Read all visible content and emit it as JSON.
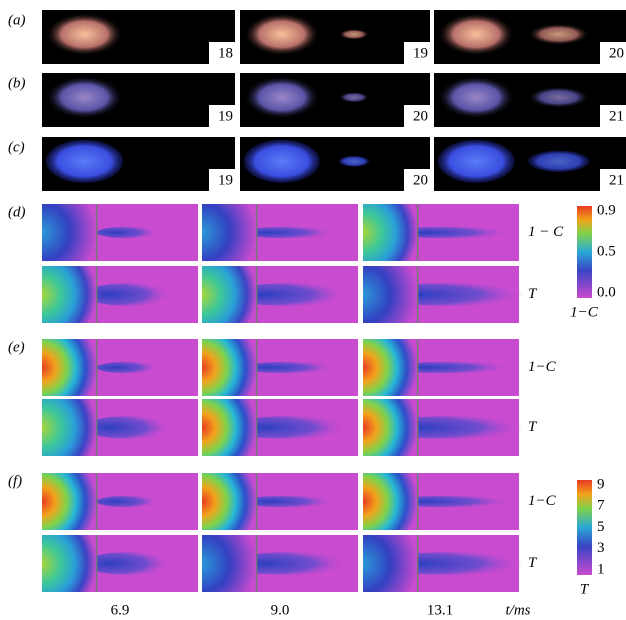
{
  "photo_rows": [
    {
      "label": "(a)",
      "frames": [
        "18",
        "19",
        "20"
      ]
    },
    {
      "label": "(b)",
      "frames": [
        "19",
        "20",
        "21"
      ]
    },
    {
      "label": "(c)",
      "frames": [
        "19",
        "20",
        "21"
      ]
    }
  ],
  "sim_rows": [
    {
      "label": "(d)",
      "top": "1 − C",
      "bottom": "T"
    },
    {
      "label": "(e)",
      "top": "1−C",
      "bottom": "T"
    },
    {
      "label": "(f)",
      "top": "1−C",
      "bottom": "T"
    }
  ],
  "colorbars": [
    {
      "ticks": [
        "0.9",
        "0.5",
        "0.0"
      ],
      "label": "1−C"
    },
    {
      "ticks": [
        "9",
        "7",
        "5",
        "3",
        "1"
      ],
      "label": "T"
    }
  ],
  "times": [
    "6.9",
    "9.0",
    "13.1"
  ],
  "time_unit": "t/ms"
}
